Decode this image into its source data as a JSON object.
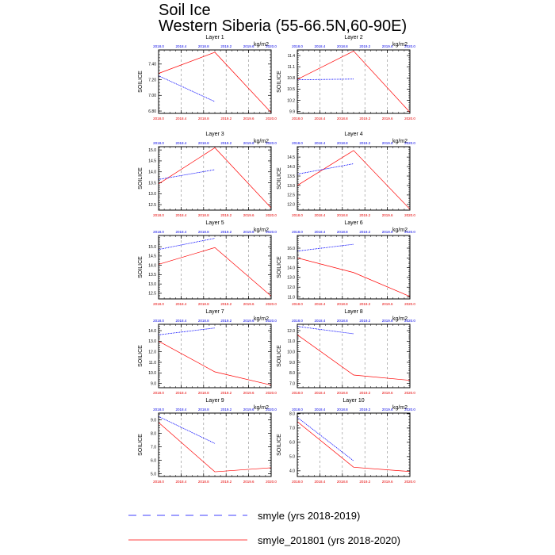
{
  "title_line1": "Soil Ice",
  "title_line2": "Western Siberia (55-66.5N,60-90E)",
  "chart_data": {
    "type": "line",
    "units": "kg/m2",
    "ylabel": "SOILICE",
    "x_ticks": [
      2018.0,
      2018.4,
      2018.8,
      2019.2,
      2019.6,
      2020.0
    ],
    "x_tick_labels": [
      "2018.0",
      "2018.4",
      "2018.8",
      "2019.2",
      "2019.6",
      "2020.0"
    ],
    "xlim": [
      2018.0,
      2020.0
    ],
    "series_names": [
      "smyle (yrs 2018-2019)",
      "smyle_201801 (yrs 2018-2020)"
    ],
    "series_colors": [
      "#0000ff",
      "#ff0000"
    ],
    "panels": [
      {
        "title": "Layer 1",
        "ylim": [
          6.77,
          7.58
        ],
        "yticks": [
          6.8,
          7.0,
          7.2,
          7.4
        ],
        "ytick_labels": [
          "6.80",
          "7.00",
          "7.20",
          "7.40"
        ],
        "smyle": {
          "x": [
            2018.0,
            2019.0
          ],
          "y": [
            7.25,
            6.92
          ]
        },
        "smyle_201801": {
          "x": [
            2018.0,
            2019.0,
            2020.0
          ],
          "y": [
            7.28,
            7.55,
            6.78
          ]
        }
      },
      {
        "title": "Layer 2",
        "ylim": [
          9.85,
          11.55
        ],
        "yticks": [
          9.9,
          10.2,
          10.5,
          10.8,
          11.1,
          11.4
        ],
        "ytick_labels": [
          "9.9",
          "10.2",
          "10.5",
          "10.8",
          "11.1",
          "11.4"
        ],
        "smyle": {
          "x": [
            2018.0,
            2019.0
          ],
          "y": [
            10.75,
            10.77
          ]
        },
        "smyle_201801": {
          "x": [
            2018.0,
            2019.0,
            2020.0
          ],
          "y": [
            10.76,
            11.52,
            9.88
          ]
        }
      },
      {
        "title": "Layer 3",
        "ylim": [
          12.25,
          15.15
        ],
        "yticks": [
          12.5,
          13.0,
          13.5,
          14.0,
          14.5,
          15.0
        ],
        "ytick_labels": [
          "12.5",
          "13.0",
          "13.5",
          "14.0",
          "14.5",
          "15.0"
        ],
        "smyle": {
          "x": [
            2018.0,
            2019.0
          ],
          "y": [
            13.65,
            14.1
          ]
        },
        "smyle_201801": {
          "x": [
            2018.0,
            2019.0,
            2020.0
          ],
          "y": [
            13.45,
            15.1,
            12.35
          ]
        }
      },
      {
        "title": "Layer 4",
        "ylim": [
          11.7,
          15.05
        ],
        "yticks": [
          12.0,
          12.5,
          13.0,
          13.5,
          14.0,
          14.5
        ],
        "ytick_labels": [
          "12.0",
          "12.5",
          "13.0",
          "13.5",
          "14.0",
          "14.5"
        ],
        "smyle": {
          "x": [
            2018.0,
            2019.0
          ],
          "y": [
            13.6,
            14.15
          ]
        },
        "smyle_201801": {
          "x": [
            2018.0,
            2019.0,
            2020.0
          ],
          "y": [
            13.0,
            14.85,
            11.75
          ]
        }
      },
      {
        "title": "Layer 5",
        "ylim": [
          12.2,
          15.6
        ],
        "yticks": [
          12.5,
          13.0,
          13.5,
          14.0,
          14.5,
          15.0
        ],
        "ytick_labels": [
          "12.5",
          "13.0",
          "13.5",
          "14.0",
          "14.5",
          "15.0"
        ],
        "smyle": {
          "x": [
            2018.0,
            2019.0
          ],
          "y": [
            14.85,
            15.45
          ]
        },
        "smyle_201801": {
          "x": [
            2018.0,
            2019.0,
            2020.0
          ],
          "y": [
            14.05,
            14.95,
            12.35
          ]
        }
      },
      {
        "title": "Layer 6",
        "ylim": [
          10.8,
          17.3
        ],
        "yticks": [
          11.0,
          12.0,
          13.0,
          14.0,
          15.0,
          16.0
        ],
        "ytick_labels": [
          "11.0",
          "12.0",
          "13.0",
          "14.0",
          "15.0",
          "16.0"
        ],
        "smyle": {
          "x": [
            2018.0,
            2019.0
          ],
          "y": [
            15.7,
            16.4
          ]
        },
        "smyle_201801": {
          "x": [
            2018.0,
            2019.0,
            2020.0
          ],
          "y": [
            15.0,
            13.5,
            11.05
          ]
        }
      },
      {
        "title": "Layer 7",
        "ylim": [
          8.6,
          14.6
        ],
        "yticks": [
          9.0,
          10.0,
          11.0,
          12.0,
          13.0,
          14.0
        ],
        "ytick_labels": [
          "9.0",
          "10.0",
          "11.0",
          "12.0",
          "13.0",
          "14.0"
        ],
        "smyle": {
          "x": [
            2018.0,
            2019.0
          ],
          "y": [
            13.6,
            14.25
          ]
        },
        "smyle_201801": {
          "x": [
            2018.0,
            2019.0,
            2020.0
          ],
          "y": [
            13.0,
            10.1,
            8.85
          ]
        }
      },
      {
        "title": "Layer 8",
        "ylim": [
          6.6,
          12.6
        ],
        "yticks": [
          7.0,
          8.0,
          9.0,
          10.0,
          11.0,
          12.0
        ],
        "ytick_labels": [
          "7.0",
          "8.0",
          "9.0",
          "10.0",
          "11.0",
          "12.0"
        ],
        "smyle": {
          "x": [
            2018.0,
            2019.0
          ],
          "y": [
            12.4,
            11.7
          ]
        },
        "smyle_201801": {
          "x": [
            2018.0,
            2019.0,
            2020.0
          ],
          "y": [
            11.6,
            7.8,
            7.3
          ]
        }
      },
      {
        "title": "Layer 9",
        "ylim": [
          4.8,
          9.5
        ],
        "yticks": [
          5.0,
          6.0,
          7.0,
          8.0,
          9.0
        ],
        "ytick_labels": [
          "5.0",
          "6.0",
          "7.0",
          "8.0",
          "9.0"
        ],
        "smyle": {
          "x": [
            2018.0,
            2019.0
          ],
          "y": [
            9.25,
            7.25
          ]
        },
        "smyle_201801": {
          "x": [
            2018.0,
            2019.0,
            2020.0
          ],
          "y": [
            8.8,
            5.15,
            5.45
          ]
        }
      },
      {
        "title": "Layer 10",
        "ylim": [
          3.6,
          8.05
        ],
        "yticks": [
          4.0,
          5.0,
          6.0,
          7.0,
          8.0
        ],
        "ytick_labels": [
          "4.0",
          "5.0",
          "6.0",
          "7.0",
          "8.0"
        ],
        "smyle": {
          "x": [
            2018.0,
            2019.0
          ],
          "y": [
            7.75,
            4.7
          ]
        },
        "smyle_201801": {
          "x": [
            2018.0,
            2019.0,
            2020.0
          ],
          "y": [
            7.45,
            4.25,
            3.95
          ]
        }
      }
    ]
  },
  "legend": {
    "items": [
      {
        "label": "smyle (yrs 2018-2019)",
        "color": "#0000ff",
        "dashed": true
      },
      {
        "label": "smyle_201801 (yrs 2018-2020)",
        "color": "#ff0000",
        "dashed": false
      }
    ]
  }
}
